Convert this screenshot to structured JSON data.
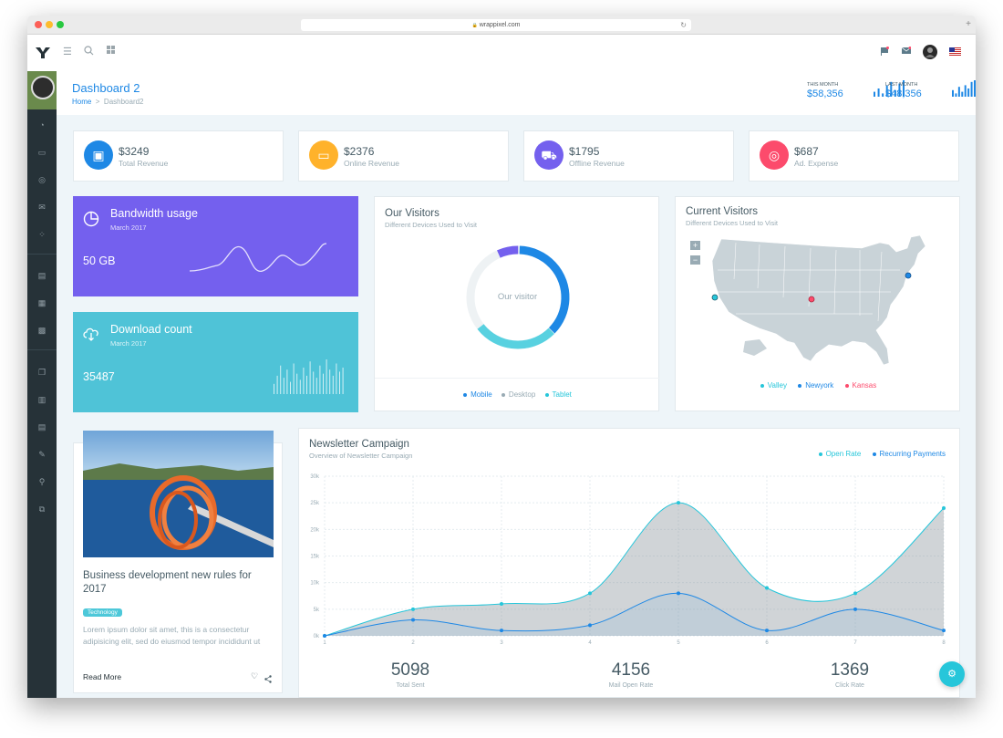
{
  "browser": {
    "url": "wrappixel.com",
    "lock": "🔒"
  },
  "topbar": {
    "logo": "Y",
    "icons": [
      "menu-icon",
      "search-icon",
      "apps-icon",
      "flag-icon",
      "mail-icon",
      "avatar",
      "us-flag-icon"
    ]
  },
  "header": {
    "title": "Dashboard 2",
    "breadcrumb": {
      "home": "Home",
      "separator": ">",
      "current": "Dashboard2"
    },
    "this_month": {
      "label": "THIS MONTH",
      "value": "$58,356",
      "bars": [
        3,
        5,
        2,
        7,
        9,
        4,
        8,
        10
      ]
    },
    "last_month": {
      "label": "LAST MONTH",
      "value": "$48,356",
      "bars": [
        4,
        2,
        6,
        3,
        7,
        5,
        9,
        10
      ]
    },
    "accent": "#1e88e5",
    "bar_color": "#1e88e5"
  },
  "kpis": [
    {
      "amount": "$3249",
      "label": "Total Revenue",
      "icon": "wallet-icon",
      "glyph": "▣",
      "color": "#1e88e5"
    },
    {
      "amount": "$2376",
      "label": "Online Revenue",
      "icon": "monitor-icon",
      "glyph": "▭",
      "color": "#ffb22b"
    },
    {
      "amount": "$1795",
      "label": "Offline Revenue",
      "icon": "cart-icon",
      "glyph": "⛟",
      "color": "#7460ee"
    },
    {
      "amount": "$687",
      "label": "Ad. Expense",
      "icon": "target-icon",
      "glyph": "◎",
      "color": "#fc4b6c"
    }
  ],
  "bandwidth": {
    "title": "Bandwidth usage",
    "date": "March 2017",
    "value": "50 GB",
    "color": "#7460ee",
    "icon": "pie-chart-icon"
  },
  "download": {
    "title": "Download count",
    "date": "March 2017",
    "value": "35487",
    "color": "#4fc3d7",
    "icon": "cloud-download-icon",
    "bars": [
      5,
      9,
      14,
      8,
      12,
      6,
      15,
      10,
      7,
      13,
      9,
      16,
      11,
      8,
      14,
      10,
      17,
      12,
      9,
      15,
      11,
      13
    ]
  },
  "visitors": {
    "title": "Our Visitors",
    "subtitle": "Different Devices Used to Visit",
    "center": "Our visitor",
    "legend": [
      {
        "name": "Mobile",
        "color": "#1e88e5"
      },
      {
        "name": "Desktop",
        "color": "#99abb4"
      },
      {
        "name": "Tablet",
        "color": "#26c6da"
      }
    ]
  },
  "current_visitors": {
    "title": "Current Visitors",
    "subtitle": "Different Devices Used to Visit",
    "zoom_in": "+",
    "zoom_out": "−",
    "legend": [
      {
        "name": "Valley",
        "color": "#26c6da"
      },
      {
        "name": "Newyork",
        "color": "#1e88e5"
      },
      {
        "name": "Kansas",
        "color": "#fc4b6c"
      }
    ]
  },
  "blog": {
    "title": "Business development new rules for 2017",
    "tag": "Technology",
    "excerpt": "Lorem ipsum dolor sit amet, this is a consectetur adipisicing elit, sed do eiusmod tempor incididunt ut",
    "read_more": "Read More",
    "icons": [
      "heart-icon",
      "share-icon"
    ]
  },
  "newsletter": {
    "title": "Newsletter Campaign",
    "subtitle": "Overview of Newsletter Campaign",
    "stats": [
      {
        "value": "5098",
        "label": "Total Sent"
      },
      {
        "value": "4156",
        "label": "Mail Open Rate"
      },
      {
        "value": "1369",
        "label": "Click Rate"
      }
    ]
  },
  "chart_data": {
    "type": "area",
    "x": [
      1,
      2,
      3,
      4,
      5,
      6,
      7,
      8
    ],
    "ylim": [
      0,
      30000
    ],
    "yticks": [
      "0k",
      "5k",
      "10k",
      "15k",
      "20k",
      "25k",
      "30k"
    ],
    "series": [
      {
        "name": "Open Rate",
        "values": [
          0,
          5000,
          6000,
          8000,
          25000,
          9000,
          8000,
          24000
        ],
        "color": "#26c6da"
      },
      {
        "name": "Recurring Payments",
        "values": [
          0,
          3000,
          1000,
          2000,
          8000,
          1000,
          5000,
          1000
        ],
        "color": "#1e88e5"
      }
    ],
    "grid": true,
    "legend": "top-right"
  },
  "fab_icon": "⚙"
}
